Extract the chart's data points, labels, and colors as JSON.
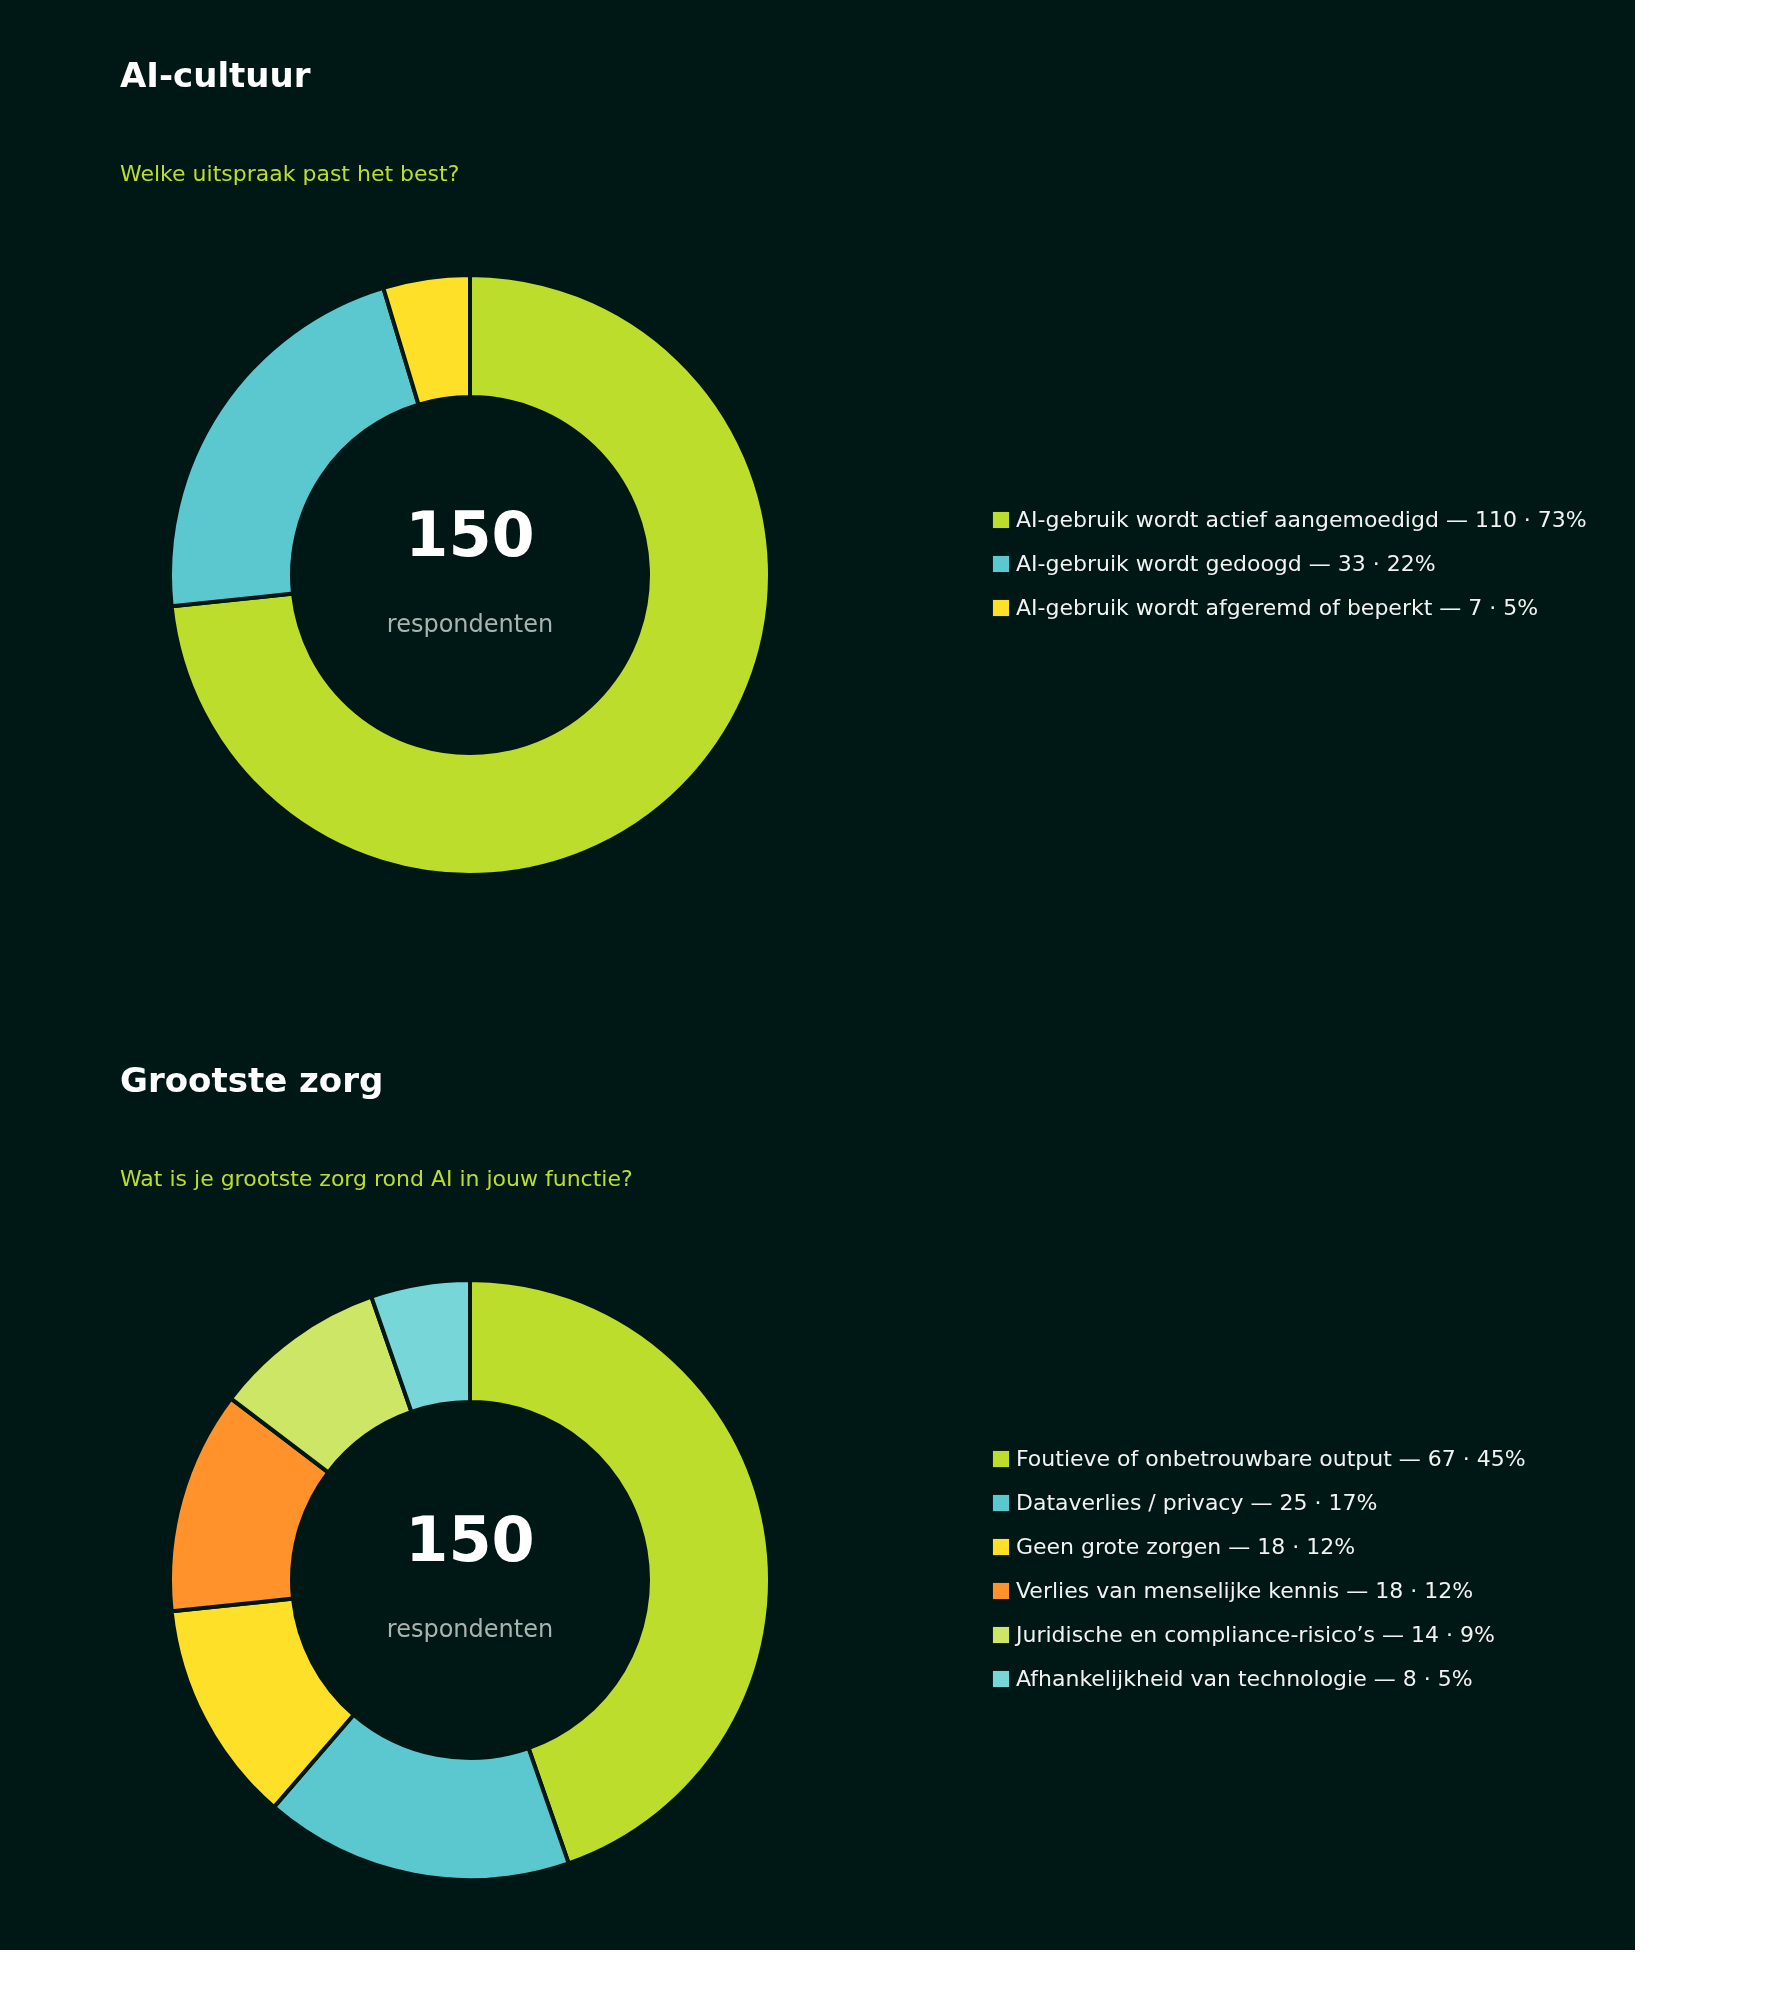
{
  "chart_data": [
    {
      "type": "donut",
      "title": "AI-cultuur",
      "subtitle": "Welke uitspraak past het best?",
      "legend": "right",
      "categories": [
        "AI-gebruik wordt actief aangemoedigd   —   110 · 73%",
        "AI-gebruik wordt gedoogd   —   33 · 22%",
        "AI-gebruik wordt afgeremd of beperkt   —   7 · 5%"
      ],
      "values": [
        110,
        33,
        7
      ],
      "colors": [
        "#bcdd2b",
        "#5bc8cf",
        "#ffe029"
      ],
      "annotations": [
        "150",
        "respondenten"
      ]
    },
    {
      "type": "donut",
      "title": "Grootste zorg",
      "subtitle": "Wat is je grootste zorg rond AI in jouw functie?",
      "legend": "right",
      "categories": [
        "Foutieve of onbetrouwbare output   —   67 · 45%",
        "Dataverlies / privacy   —   25 · 17%",
        "Geen grote zorgen   —   18 · 12%",
        "Verlies van menselijke kennis   —   18 · 12%",
        "Juridische en compliance-risico’s   —   14 · 9%",
        "Afhankelijkheid van technologie   —   8 · 5%"
      ],
      "values": [
        67,
        25,
        18,
        18,
        14,
        8
      ],
      "colors": [
        "#bcdd2b",
        "#5bc8cf",
        "#ffe029",
        "#ff922b",
        "#cde666",
        "#76d6d8"
      ],
      "annotations": [
        "150",
        "respondenten"
      ]
    }
  ]
}
